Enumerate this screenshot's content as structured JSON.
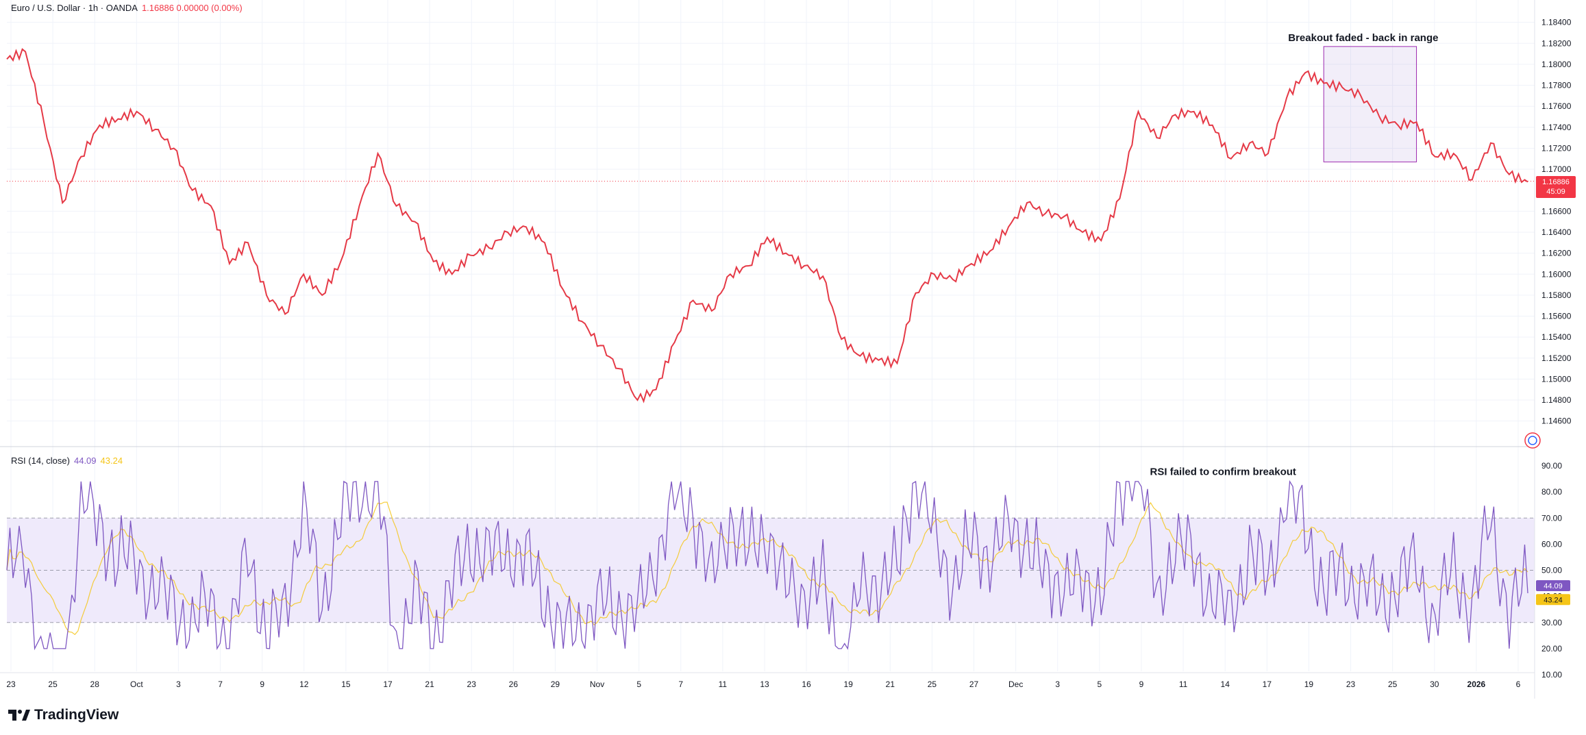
{
  "header": {
    "symbol": "Euro / U.S. Dollar · 1h · OANDA",
    "ohlc": "1.16886  0.00000 (0.00%)"
  },
  "rsi_header": {
    "label": "RSI (14, close)",
    "rsi_value": "44.09",
    "ma_value": "43.24"
  },
  "brand": {
    "name": "TradingView",
    "icon": "tradingview-logo-icon"
  },
  "colors": {
    "price_line": "#e53946",
    "rsi_line": "#7e57c2",
    "rsi_ma": "#f5c518",
    "band_fill": "#efeafb",
    "grid": "#f0f3fa",
    "price_tag": "#f23645",
    "rsi_tag": "#7e57c2",
    "ma_tag": "#f5c518"
  },
  "chart_data": [
    {
      "type": "line",
      "series": [
        {
          "name": "Euro / U.S. Dollar",
          "color": "#e53946"
        }
      ],
      "x_ticks": [
        "23",
        "25",
        "28",
        "Oct",
        "3",
        "7",
        "9",
        "12",
        "15",
        "17",
        "21",
        "23",
        "26",
        "29",
        "Nov",
        "5",
        "7",
        "11",
        "13",
        "16",
        "19",
        "21",
        "25",
        "27",
        "Dec",
        "3",
        "5",
        "9",
        "11",
        "14",
        "17",
        "19",
        "23",
        "25",
        "30",
        "2026",
        "6"
      ],
      "y_ticks": [
        "1.18400",
        "1.18200",
        "1.18000",
        "1.17800",
        "1.17600",
        "1.17400",
        "1.17200",
        "1.17000",
        "1.16600",
        "1.16400",
        "1.16200",
        "1.16000",
        "1.15800",
        "1.15600",
        "1.15400",
        "1.15200",
        "1.15000",
        "1.14800",
        "1.14600"
      ],
      "ylim": [
        1.145,
        1.1845
      ],
      "x": [
        "Sep 23",
        "Sep 24",
        "Sep 25",
        "Sep 26",
        "Sep 28",
        "Sep 29",
        "Sep 30",
        "Oct 1",
        "Oct 2",
        "Oct 3",
        "Oct 6",
        "Oct 7",
        "Oct 8",
        "Oct 9",
        "Oct 10",
        "Oct 12",
        "Oct 13",
        "Oct 14",
        "Oct 15",
        "Oct 16",
        "Oct 17",
        "Oct 20",
        "Oct 21",
        "Oct 22",
        "Oct 23",
        "Oct 24",
        "Oct 26",
        "Oct 27",
        "Oct 28",
        "Oct 29",
        "Oct 30",
        "Oct 31",
        "Nov 3",
        "Nov 4",
        "Nov 5",
        "Nov 6",
        "Nov 7",
        "Nov 10",
        "Nov 11",
        "Nov 12",
        "Nov 13",
        "Nov 14",
        "Nov 16",
        "Nov 17",
        "Nov 18",
        "Nov 19",
        "Nov 20",
        "Nov 21",
        "Nov 24",
        "Nov 25",
        "Nov 26",
        "Nov 27",
        "Nov 28",
        "Dec 1",
        "Dec 2",
        "Dec 3",
        "Dec 4",
        "Dec 5",
        "Dec 8",
        "Dec 9",
        "Dec 10",
        "Dec 11",
        "Dec 12",
        "Dec 14",
        "Dec 15",
        "Dec 16",
        "Dec 17",
        "Dec 18",
        "Dec 19",
        "Dec 22",
        "Dec 23",
        "Dec 24",
        "Dec 25",
        "Dec 26",
        "Dec 29",
        "Dec 30",
        "Dec 31",
        "Jan 1",
        "Jan 2",
        "Jan 5",
        "Jan 6",
        "Jan 7",
        "Jan 8"
      ],
      "values": [
        1.1805,
        1.1812,
        1.1745,
        1.1668,
        1.1712,
        1.1742,
        1.1748,
        1.1755,
        1.1738,
        1.172,
        1.168,
        1.1665,
        1.161,
        1.163,
        1.158,
        1.1562,
        1.16,
        1.158,
        1.1612,
        1.1665,
        1.1715,
        1.1665,
        1.165,
        1.1612,
        1.16,
        1.1618,
        1.1625,
        1.164,
        1.1645,
        1.163,
        1.1585,
        1.1555,
        1.1532,
        1.151,
        1.148,
        1.149,
        1.1535,
        1.1575,
        1.1565,
        1.16,
        1.1608,
        1.1635,
        1.162,
        1.1608,
        1.1598,
        1.1538,
        1.1522,
        1.1518,
        1.1515,
        1.1582,
        1.16,
        1.1595,
        1.161,
        1.1622,
        1.1645,
        1.1668,
        1.1658,
        1.1655,
        1.164,
        1.1632,
        1.1672,
        1.1755,
        1.173,
        1.1752,
        1.1755,
        1.1742,
        1.171,
        1.1725,
        1.1715,
        1.1768,
        1.1792,
        1.1782,
        1.1778,
        1.177,
        1.175,
        1.1742,
        1.1745,
        1.1712,
        1.1715,
        1.169,
        1.1725,
        1.1695,
        1.1688
      ],
      "last_price_label": "1.16886",
      "countdown_label": "45:09",
      "annotations": [
        {
          "text": "Breakout faded - back in range",
          "x_range": [
            "Dec 24",
            "Dec 31"
          ],
          "y_range": [
            1.1707,
            1.1817
          ]
        }
      ]
    },
    {
      "type": "line",
      "series": [
        {
          "name": "RSI",
          "color": "#7e57c2"
        },
        {
          "name": "RSI-based MA",
          "color": "#f5c518"
        }
      ],
      "y_ticks": [
        "90.00",
        "80.00",
        "70.00",
        "60.00",
        "50.00",
        "40.00",
        "30.00",
        "20.00",
        "10.00"
      ],
      "ylim": [
        10,
        90
      ],
      "bands": {
        "upper": 70,
        "middle": 50,
        "lower": 30
      },
      "rsi_tag": "44.09",
      "ma_tag": "43.24",
      "annotations": [
        {
          "text": "RSI failed to confirm breakout"
        }
      ]
    }
  ]
}
